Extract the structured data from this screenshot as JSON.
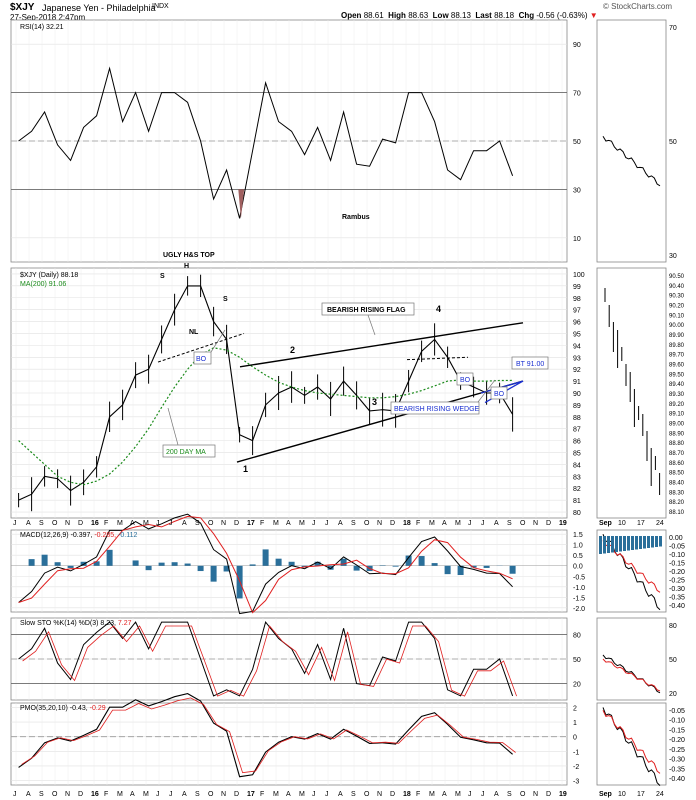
{
  "header": {
    "title": "$XJY",
    "name": "Japanese Yen - Philadelphia",
    "exchange": "INDX",
    "datetime": "27-Sep-2018 2:47pm",
    "open_label": "Open",
    "open": "88.61",
    "high_label": "High",
    "high": "88.63",
    "low_label": "Low",
    "low": "88.13",
    "last_label": "Last",
    "last": "88.18",
    "chg_label": "Chg",
    "chg": "-0.56 (-0.63%)",
    "watermark": "© StockCharts.com"
  },
  "colors": {
    "price_bar": "#000000",
    "ma200": "#1a8a1a",
    "macd": "#000000",
    "signal": "#e02020",
    "histogram": "#2a6f9a",
    "rsi_low_fill": "#a06060",
    "wedge": "#1a2fd0",
    "annotation_blue": "#1a2fd0"
  },
  "panels": {
    "rsi": {
      "legend": "RSI(14) 32.21",
      "tick_labels": [
        "90",
        "70",
        "50",
        "30",
        "10"
      ],
      "zoom_ticks": [
        "70",
        "50",
        "30"
      ]
    },
    "price": {
      "legend_symbol": "$XJY (Daily) 88.18",
      "legend_ma": "MA(200) 91.06",
      "tick_labels": [
        "100",
        "99",
        "98",
        "97",
        "96",
        "95",
        "94",
        "93",
        "92",
        "91",
        "90",
        "89",
        "88",
        "87",
        "86",
        "85",
        "84",
        "83",
        "82",
        "81",
        "80"
      ],
      "zoom_ticks": [
        "90.50",
        "90.40",
        "90.30",
        "90.20",
        "90.10",
        "90.00",
        "89.90",
        "89.80",
        "89.70",
        "89.60",
        "89.50",
        "89.40",
        "89.30",
        "89.20",
        "89.10",
        "89.00",
        "88.90",
        "88.80",
        "88.70",
        "88.60",
        "88.50",
        "88.40",
        "88.30",
        "88.20",
        "88.10"
      ]
    },
    "macd": {
      "legend_name": "MACD(12,26,9)",
      "legend_macd": "-0.397,",
      "legend_signal": "-0.285,",
      "legend_hist": "-0.112",
      "tick_labels": [
        "1.5",
        "1.0",
        "0.5",
        "0.0",
        "-0.5",
        "-1.0",
        "-1.5",
        "-2.0"
      ],
      "zoom_ticks": [
        "0.00",
        "-0.05",
        "-0.10",
        "-0.15",
        "-0.20",
        "-0.25",
        "-0.30",
        "-0.35",
        "-0.40"
      ]
    },
    "sto": {
      "legend_name": "Slow STO %K(14) %D(3)",
      "legend_k": "8.23,",
      "legend_d": "7.27",
      "tick_labels": [
        "80",
        "50",
        "20"
      ],
      "zoom_ticks": [
        "80",
        "50",
        "20"
      ]
    },
    "pmo": {
      "legend_name": "PMO(35,20,10)",
      "legend_pmo": "-0.43,",
      "legend_signal": "-0.29",
      "tick_labels": [
        "2",
        "1",
        "0",
        "-1",
        "-2",
        "-3"
      ],
      "zoom_ticks": [
        "-0.05",
        "-0.10",
        "-0.15",
        "-0.20",
        "-0.25",
        "-0.30",
        "-0.35",
        "-0.40"
      ]
    }
  },
  "x_axis": {
    "labels": [
      "J",
      "A",
      "S",
      "O",
      "N",
      "D",
      "16",
      "F",
      "M",
      "A",
      "M",
      "J",
      "J",
      "A",
      "S",
      "O",
      "N",
      "D",
      "17",
      "F",
      "M",
      "A",
      "M",
      "J",
      "J",
      "A",
      "S",
      "O",
      "N",
      "D",
      "18",
      "F",
      "M",
      "A",
      "M",
      "J",
      "J",
      "A",
      "S",
      "O",
      "N",
      "D",
      "19"
    ],
    "zoom_labels": [
      "Sep",
      "10",
      "17",
      "24"
    ]
  },
  "annotations": {
    "ugly_hs_top": "UGLY H&S TOP",
    "h_label": "H",
    "s_label": "S",
    "nl_label": "NL",
    "bo_label": "BO",
    "rambus": "Rambus",
    "bearish_rising_flag": "BEARISH RISING FLAG",
    "bearish_rising_wedge": "BEARISH RISING WEDGE",
    "bt_label": "BT 91.00",
    "ma_callout": "200 DAY MA",
    "point_1": "1",
    "point_2": "2",
    "point_3": "3",
    "point_4": "4"
  },
  "chart_data": {
    "type": "line",
    "title": "$XJY Japanese Yen - Philadelphia INDX",
    "ylim": [
      80,
      100
    ],
    "x": [
      "2015-07",
      "2015-08",
      "2015-09",
      "2015-10",
      "2015-11",
      "2015-12",
      "2016-01",
      "2016-02",
      "2016-03",
      "2016-04",
      "2016-05",
      "2016-06",
      "2016-07",
      "2016-08",
      "2016-09",
      "2016-10",
      "2016-11",
      "2016-12",
      "2017-01",
      "2017-02",
      "2017-03",
      "2017-04",
      "2017-05",
      "2017-06",
      "2017-07",
      "2017-08",
      "2017-09",
      "2017-10",
      "2017-11",
      "2017-12",
      "2018-01",
      "2018-02",
      "2018-03",
      "2018-04",
      "2018-05",
      "2018-06",
      "2018-07",
      "2018-08",
      "2018-09"
    ],
    "series": [
      {
        "name": "$XJY (Daily)",
        "values": [
          81.0,
          81.5,
          83.0,
          82.8,
          81.8,
          82.5,
          83.8,
          88.0,
          89.0,
          91.5,
          92.0,
          94.5,
          97.0,
          99.0,
          99.0,
          96.0,
          94.5,
          86.5,
          86.0,
          89.0,
          90.0,
          90.5,
          89.8,
          90.5,
          89.5,
          91.0,
          89.8,
          88.5,
          88.6,
          88.5,
          91.0,
          93.5,
          94.5,
          93.0,
          91.0,
          90.5,
          90.0,
          90.0,
          88.2
        ]
      },
      {
        "name": "MA(200)",
        "values": [
          86.0,
          85.0,
          84.0,
          83.0,
          82.5,
          82.3,
          82.6,
          83.2,
          84.2,
          85.5,
          87.0,
          88.8,
          90.5,
          92.0,
          93.2,
          93.8,
          93.6,
          93.0,
          92.2,
          91.5,
          90.9,
          90.5,
          90.2,
          90.0,
          89.9,
          89.8,
          89.7,
          89.6,
          89.6,
          89.7,
          89.9,
          90.2,
          90.6,
          91.0,
          91.1,
          91.0,
          91.0,
          91.05,
          91.06
        ]
      }
    ]
  }
}
